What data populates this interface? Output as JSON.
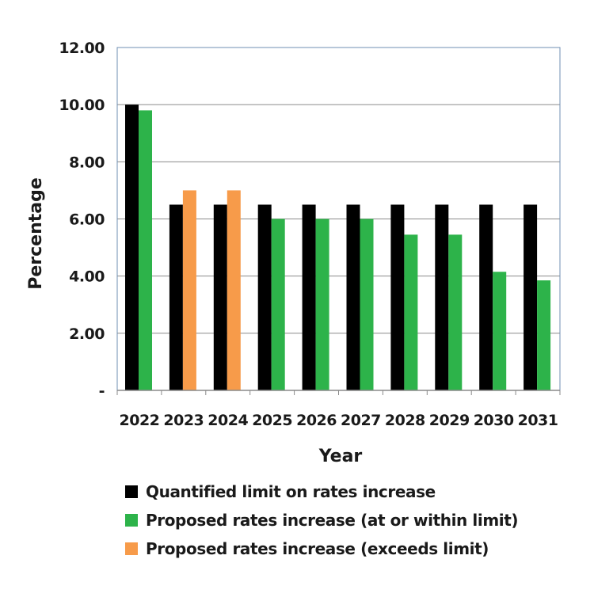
{
  "chart_data": {
    "type": "bar",
    "xlabel": "Year",
    "ylabel": "Percentage",
    "ylim": [
      0,
      12
    ],
    "yticks": [
      "-",
      "2.00",
      "4.00",
      "6.00",
      "8.00",
      "10.00",
      "12.00"
    ],
    "grid": true,
    "categories": [
      "2022",
      "2023",
      "2024",
      "2025",
      "2026",
      "2027",
      "2028",
      "2029",
      "2030",
      "2031"
    ],
    "series": [
      {
        "name": "Quantified limit on rates increase",
        "color": "#000000",
        "values": [
          10.0,
          6.5,
          6.5,
          6.5,
          6.5,
          6.5,
          6.5,
          6.5,
          6.5,
          6.5
        ]
      },
      {
        "name": "Proposed rates increase",
        "values": [
          9.8,
          7.0,
          7.0,
          6.0,
          6.0,
          6.0,
          5.45,
          5.45,
          4.15,
          3.85
        ],
        "exceeds_limit": [
          false,
          true,
          true,
          false,
          false,
          false,
          false,
          false,
          false,
          false
        ]
      }
    ],
    "legend": [
      {
        "label": "Quantified limit on rates increase",
        "color": "#000000"
      },
      {
        "label": "Proposed rates increase (at or within limit)",
        "color": "#2db34a"
      },
      {
        "label": "Proposed rates increase (exceeds limit)",
        "color": "#f79b4a"
      }
    ],
    "legend_position": "bottom"
  }
}
